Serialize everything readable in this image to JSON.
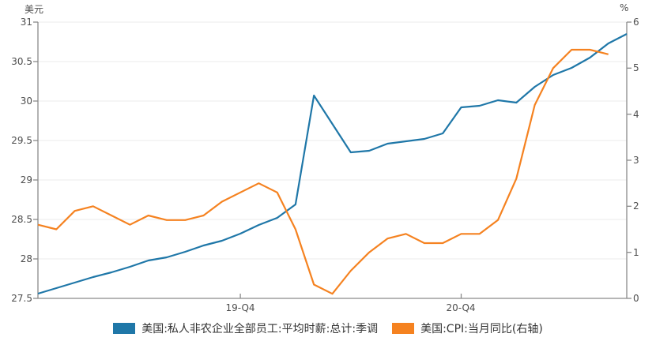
{
  "chart": {
    "unit_left": "美元",
    "unit_right": "%",
    "legend": [
      {
        "label": "美国:私人非农企业全部员工:平均时薪:总计:季调"
      },
      {
        "label": "美国:CPI:当月同比(右轴)"
      }
    ]
  },
  "chart_data": {
    "type": "line",
    "title": "",
    "x": [
      "2019-01",
      "2019-02",
      "2019-03",
      "2019-04",
      "2019-05",
      "2019-06",
      "2019-07",
      "2019-08",
      "2019-09",
      "2019-10",
      "2019-11",
      "2019-12",
      "2020-01",
      "2020-02",
      "2020-03",
      "2020-04",
      "2020-05",
      "2020-06",
      "2020-07",
      "2020-08",
      "2020-09",
      "2020-10",
      "2020-11",
      "2020-12",
      "2021-01",
      "2021-02",
      "2021-03",
      "2021-04",
      "2021-05",
      "2021-06",
      "2021-07",
      "2021-08",
      "2021-09"
    ],
    "x_ticks": [
      {
        "index": 11,
        "label": "19-Q4"
      },
      {
        "index": 23,
        "label": "20-Q4"
      }
    ],
    "y_left": {
      "unit": "美元",
      "min": 27.5,
      "max": 31,
      "ticks": [
        27.5,
        28,
        28.5,
        29,
        29.5,
        30,
        30.5,
        31
      ]
    },
    "y_right": {
      "unit": "%",
      "min": 0,
      "max": 6,
      "ticks": [
        0,
        1,
        2,
        3,
        4,
        5,
        6
      ]
    },
    "grid": "horizontal-only",
    "legend_position": "bottom-center",
    "series": [
      {
        "name": "美国:私人非农企业全部员工:平均时薪:总计:季调",
        "axis": "left",
        "color": "#1f77a8",
        "values": [
          27.56,
          27.63,
          27.7,
          27.77,
          27.83,
          27.9,
          27.98,
          28.02,
          28.09,
          28.17,
          28.23,
          28.32,
          28.43,
          28.52,
          28.69,
          30.07,
          29.71,
          29.35,
          29.37,
          29.46,
          29.49,
          29.52,
          29.59,
          29.92,
          29.94,
          30.01,
          29.98,
          30.18,
          30.33,
          30.42,
          30.55,
          30.73,
          30.85
        ]
      },
      {
        "name": "美国:CPI:当月同比(右轴)",
        "axis": "right",
        "color": "#f58220",
        "values": [
          1.6,
          1.5,
          1.9,
          2.0,
          1.8,
          1.6,
          1.8,
          1.7,
          1.7,
          1.8,
          2.1,
          2.3,
          2.5,
          2.3,
          1.5,
          0.3,
          0.1,
          0.6,
          1.0,
          1.3,
          1.4,
          1.2,
          1.2,
          1.4,
          1.4,
          1.7,
          2.6,
          4.2,
          5.0,
          5.4,
          5.4,
          5.3
        ]
      }
    ]
  }
}
